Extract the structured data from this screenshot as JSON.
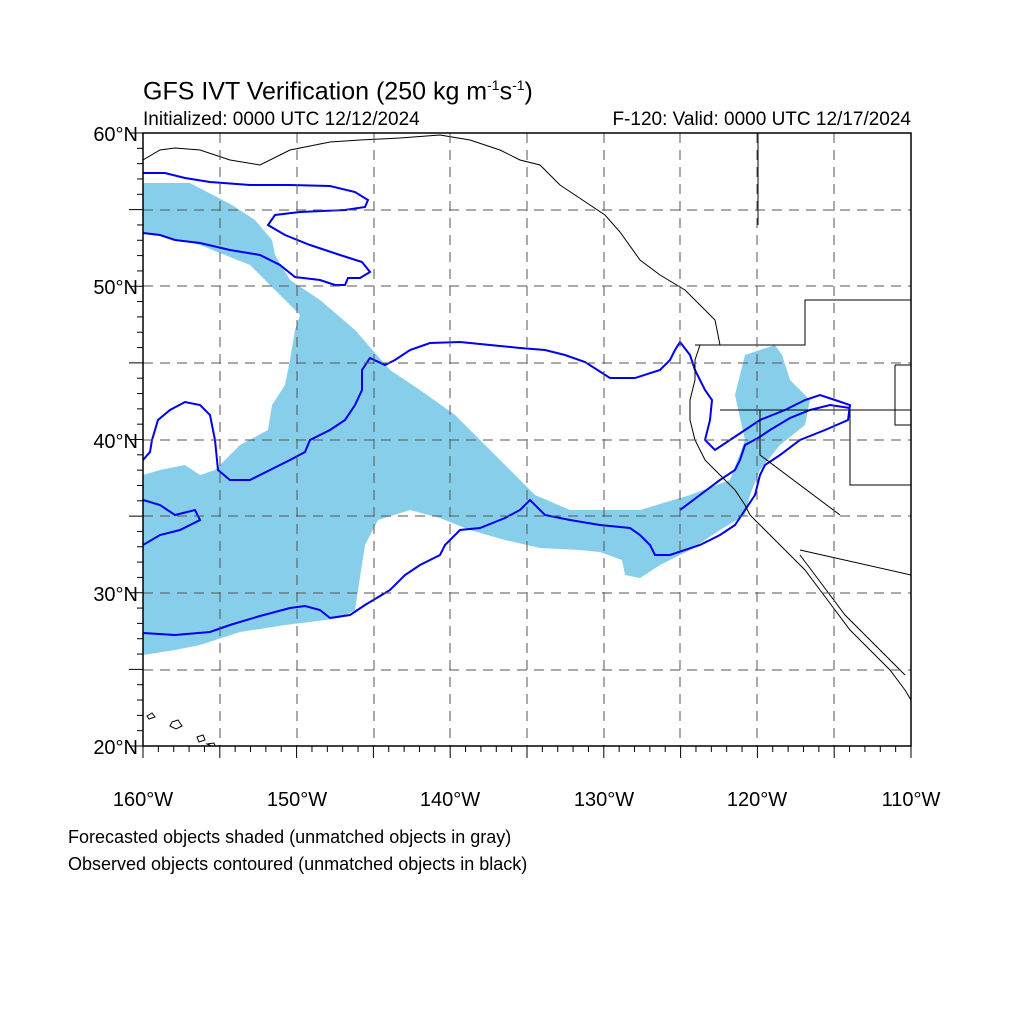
{
  "title": {
    "main_prefix": "GFS IVT Verification (250 kg m",
    "exp1": "-1",
    "middle": "s",
    "exp2": "-1",
    "suffix": ")"
  },
  "initialized": "Initialized: 0000 UTC 12/12/2024",
  "valid": "F-120: Valid: 0000 UTC 12/17/2024",
  "lat_labels": [
    "60°N",
    "50°N",
    "40°N",
    "30°N",
    "20°N"
  ],
  "lon_labels": [
    "160°W",
    "150°W",
    "140°W",
    "130°W",
    "120°W",
    "110°W"
  ],
  "map_extent": {
    "lon": [
      -160,
      -110
    ],
    "lat": [
      20,
      60
    ]
  },
  "colors": {
    "forecast_shade": "#87ceeb",
    "observed_contour": "#0000ee",
    "coastline": "#000000",
    "grid": "#555555"
  },
  "footnote": [
    "Forecasted objects shaded (unmatched objects in gray)",
    "Observed objects contoured (unmatched objects in black)"
  ]
}
